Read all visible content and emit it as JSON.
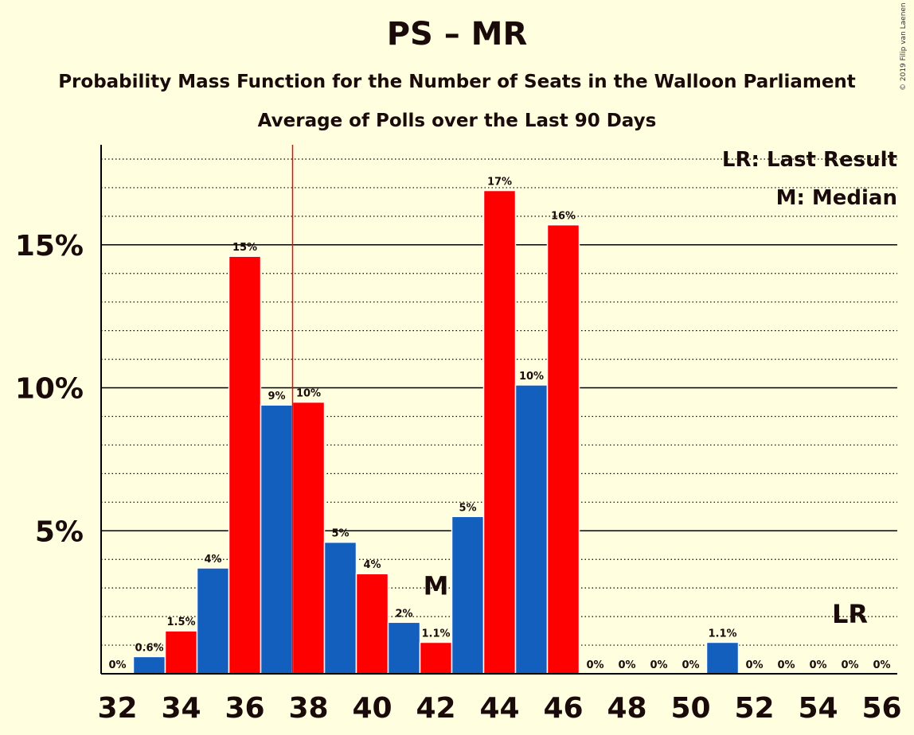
{
  "title": "PS – MR",
  "subtitle": "Probability Mass Function for the Number of Seats in the Walloon Parliament",
  "subtitle2": "Average of Polls over the Last 90 Days",
  "copyright": "© 2019 Filip van Laenen",
  "colors": {
    "red": "#ff0000",
    "blue": "#135fbd",
    "background": "#ffffe0",
    "text": "#1a0a0a"
  },
  "chart_data": {
    "type": "bar",
    "x": [
      32,
      33,
      34,
      35,
      36,
      37,
      38,
      39,
      40,
      41,
      42,
      43,
      44,
      45,
      46,
      47,
      48,
      49,
      50,
      51,
      52,
      53,
      54,
      55,
      56
    ],
    "values": [
      0,
      0.6,
      1.5,
      3.7,
      14.6,
      9.4,
      9.5,
      4.6,
      3.5,
      1.8,
      1.1,
      5.5,
      16.9,
      10.1,
      15.7,
      0,
      0,
      0,
      0,
      1.1,
      0,
      0,
      0,
      0,
      0
    ],
    "labels": [
      "0%",
      "0.6%",
      "1.5%",
      "4%",
      "15%",
      "9%",
      "10%",
      "5%",
      "4%",
      "2%",
      "1.1%",
      "5%",
      "17%",
      "10%",
      "16%",
      "0%",
      "0%",
      "0%",
      "0%",
      "1.1%",
      "0%",
      "0%",
      "0%",
      "0%",
      "0%"
    ],
    "x_tick_labels": [
      "32",
      "34",
      "36",
      "38",
      "40",
      "42",
      "44",
      "46",
      "48",
      "50",
      "52",
      "54",
      "56"
    ],
    "y_tick_labels": [
      "5%",
      "10%",
      "15%"
    ],
    "y_ticks": [
      5,
      10,
      15
    ],
    "ylim": [
      0,
      18.5
    ],
    "grid": true,
    "median_seat": 42,
    "median_label": "M",
    "last_result_seat": 55,
    "last_result_label": "LR",
    "majority_line_x": 37.5,
    "legend": [
      "LR: Last Result",
      "M: Median"
    ],
    "legend_position": "top-right"
  }
}
